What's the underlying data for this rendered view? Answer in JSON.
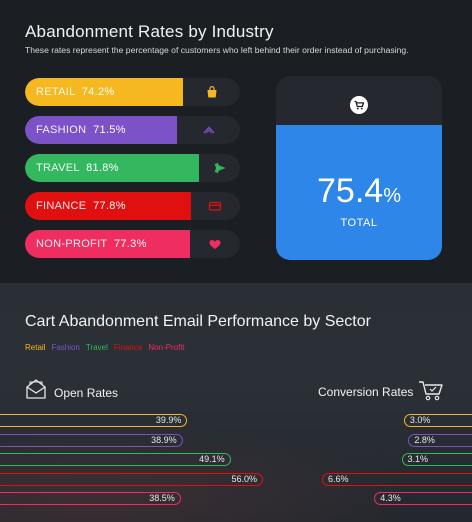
{
  "colors": {
    "retail": "#f6b820",
    "fashion": "#7c52c8",
    "travel": "#34b85f",
    "finance": "#e01010",
    "nonprofit": "#ef2d60",
    "total": "#2e86e8"
  },
  "chart_data": [
    {
      "type": "bar",
      "title": "Abandonment Rates by Industry",
      "subtitle": "These rates represent the percentage of customers who left behind their order instead of purchasing.",
      "categories": [
        "RETAIL",
        "FASHION",
        "TRAVEL",
        "FINANCE",
        "NON-PROFIT"
      ],
      "values": [
        74.2,
        71.5,
        81.8,
        77.8,
        77.3
      ],
      "value_labels": [
        "74.2%",
        "71.5%",
        "81.8%",
        "77.8%",
        "77.3%"
      ],
      "icons": [
        "shopping-bag-icon",
        "fashion-chevron-icon",
        "airplane-icon",
        "credit-card-icon",
        "heart-icon"
      ],
      "xlim": [
        0,
        100
      ],
      "total": {
        "value": 75.4,
        "value_text": "75.4",
        "unit": "%",
        "label": "TOTAL",
        "icon": "shopping-cart-icon"
      }
    },
    {
      "type": "bar",
      "title": "Cart Abandonment Email Performance by Sector",
      "legend": [
        "Retail",
        "Fashion",
        "Travel",
        "Finance",
        "Non-Profit"
      ],
      "series": [
        {
          "name": "Open Rates",
          "values": [
            39.9,
            38.9,
            49.1,
            56.0,
            38.5
          ],
          "labels": [
            "39.9%",
            "38.9%",
            "49.1%",
            "56.0%",
            "38.5%"
          ],
          "icon": "envelope-icon"
        },
        {
          "name": "Conversion Rates",
          "values": [
            3.0,
            2.8,
            3.1,
            6.6,
            4.3
          ],
          "labels": [
            "3.0%",
            "2.8%",
            "3.1%",
            "6.6%",
            "4.3%"
          ],
          "icon": "shopping-cart-icon"
        }
      ]
    }
  ]
}
